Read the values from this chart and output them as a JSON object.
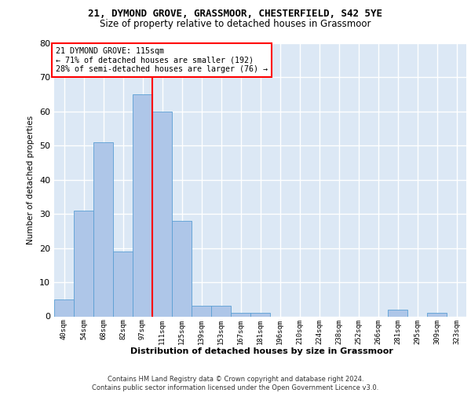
{
  "title1": "21, DYMOND GROVE, GRASSMOOR, CHESTERFIELD, S42 5YE",
  "title2": "Size of property relative to detached houses in Grassmoor",
  "xlabel": "Distribution of detached houses by size in Grassmoor",
  "ylabel": "Number of detached properties",
  "categories": [
    "40sqm",
    "54sqm",
    "68sqm",
    "82sqm",
    "97sqm",
    "111sqm",
    "125sqm",
    "139sqm",
    "153sqm",
    "167sqm",
    "181sqm",
    "196sqm",
    "210sqm",
    "224sqm",
    "238sqm",
    "252sqm",
    "266sqm",
    "281sqm",
    "295sqm",
    "309sqm",
    "323sqm"
  ],
  "values": [
    5,
    31,
    51,
    19,
    65,
    60,
    28,
    3,
    3,
    1,
    1,
    0,
    0,
    0,
    0,
    0,
    0,
    2,
    0,
    1,
    0
  ],
  "bar_color": "#aec6e8",
  "bar_edge_color": "#5a9fd4",
  "vline_x": 4.5,
  "annotation_text": "21 DYMOND GROVE: 115sqm\n← 71% of detached houses are smaller (192)\n28% of semi-detached houses are larger (76) →",
  "annotation_box_color": "white",
  "annotation_box_edge_color": "red",
  "vline_color": "red",
  "ylim": [
    0,
    80
  ],
  "yticks": [
    0,
    10,
    20,
    30,
    40,
    50,
    60,
    70,
    80
  ],
  "footer": "Contains HM Land Registry data © Crown copyright and database right 2024.\nContains public sector information licensed under the Open Government Licence v3.0.",
  "background_color": "#dce8f5",
  "grid_color": "white"
}
